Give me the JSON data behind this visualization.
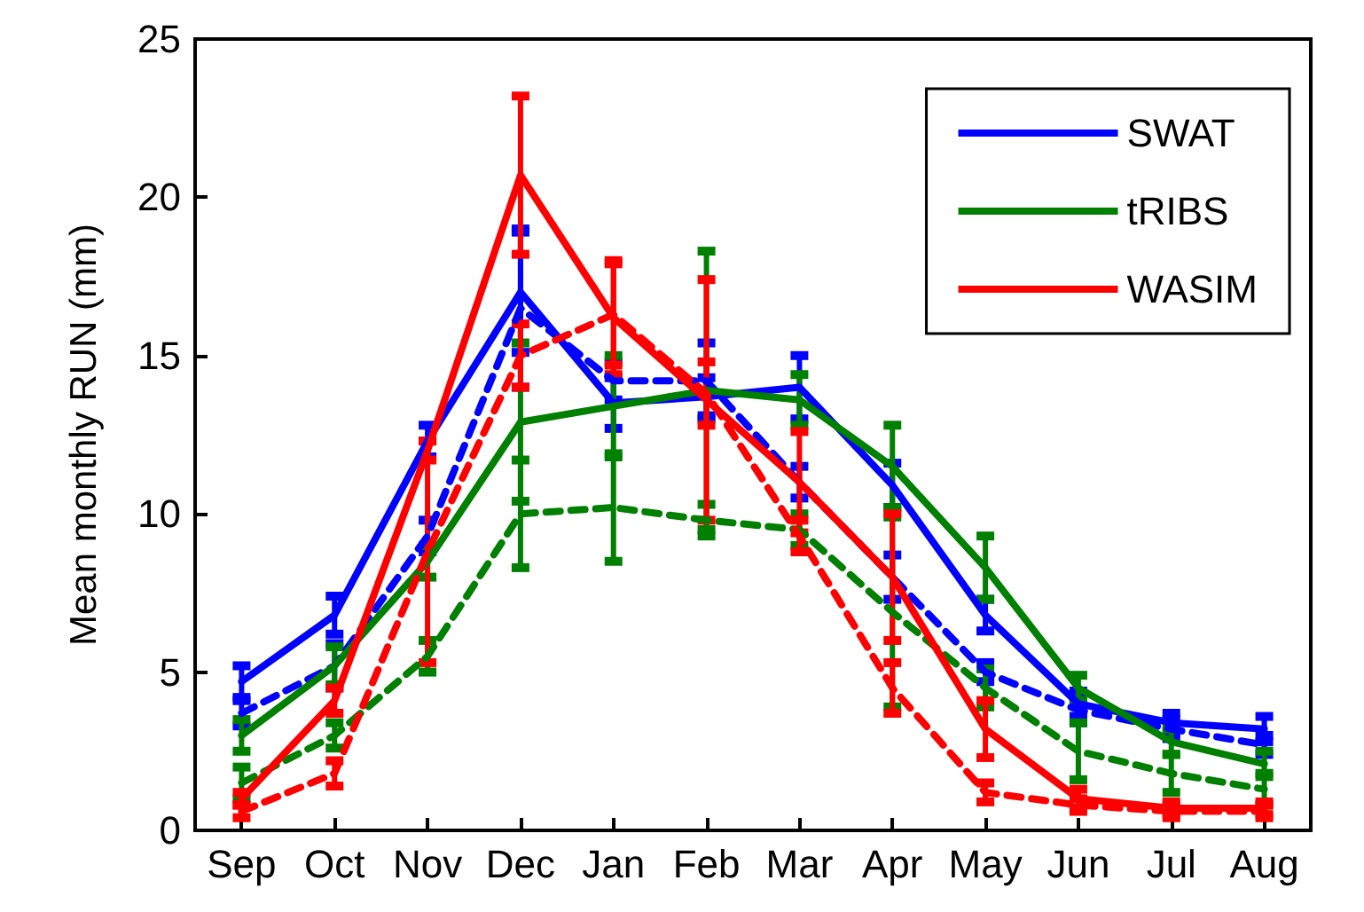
{
  "chart_data": {
    "type": "line",
    "ylabel": "Mean monthly RUN (mm)",
    "categories": [
      "Sep",
      "Oct",
      "Nov",
      "Dec",
      "Jan",
      "Feb",
      "Mar",
      "Apr",
      "May",
      "Jun",
      "Jul",
      "Aug"
    ],
    "ylim": [
      0,
      25
    ],
    "yticks": [
      0,
      5,
      10,
      15,
      20,
      25
    ],
    "grid": false,
    "legend": "top right",
    "marker": "none",
    "series": [
      {
        "name": "SWAT",
        "color": "#0000ff",
        "line_style": "solid",
        "values": [
          4.7,
          6.8,
          12.3,
          17.0,
          13.5,
          13.7,
          14.0,
          10.9,
          6.8,
          4.0,
          3.4,
          3.2
        ],
        "errors": [
          0.5,
          0.6,
          0.5,
          1.9,
          0.8,
          0.6,
          1.0,
          0.7,
          0.5,
          0.4,
          0.3,
          0.4
        ]
      },
      {
        "color": "#0000ff",
        "line_style": "dashed",
        "values": [
          3.7,
          5.2,
          9.3,
          16.5,
          14.2,
          14.2,
          11.0,
          8.0,
          5.0,
          3.8,
          3.2,
          2.7
        ],
        "errors": [
          0.4,
          0.7,
          0.5,
          2.5,
          0.6,
          1.2,
          0.5,
          0.7,
          0.3,
          0.4,
          0.3,
          0.3
        ]
      },
      {
        "name": "tRIBS",
        "color": "#008000",
        "line_style": "solid",
        "values": [
          3.0,
          5.2,
          8.5,
          12.9,
          13.4,
          13.9,
          13.6,
          11.5,
          8.3,
          4.5,
          2.8,
          2.1
        ],
        "errors": [
          0.5,
          0.6,
          0.5,
          2.5,
          1.6,
          4.4,
          0.8,
          1.3,
          1.0,
          0.4,
          0.4,
          0.4
        ]
      },
      {
        "color": "#008000",
        "line_style": "dashed",
        "values": [
          1.5,
          3.0,
          5.5,
          10.0,
          10.2,
          9.8,
          9.5,
          6.9,
          4.5,
          2.5,
          1.8,
          1.3
        ],
        "errors": [
          0.5,
          0.4,
          0.5,
          1.7,
          1.7,
          0.5,
          0.5,
          3.0,
          0.6,
          0.9,
          0.6,
          0.5
        ]
      },
      {
        "name": "WASIM",
        "color": "#ff0000",
        "line_style": "solid",
        "values": [
          1.0,
          4.1,
          12.0,
          20.7,
          16.2,
          13.6,
          11.0,
          8.0,
          3.2,
          1.0,
          0.7,
          0.7
        ],
        "errors": [
          0.2,
          0.4,
          0.3,
          2.5,
          1.8,
          3.8,
          1.6,
          2.0,
          0.9,
          0.3,
          0.2,
          0.2
        ]
      },
      {
        "color": "#ff0000",
        "line_style": "dashed",
        "values": [
          0.6,
          1.8,
          8.8,
          15.0,
          16.3,
          13.8,
          9.3,
          4.5,
          1.2,
          0.8,
          0.6,
          0.6
        ],
        "errors": [
          0.2,
          0.4,
          3.5,
          1.0,
          1.6,
          1.0,
          0.5,
          0.8,
          0.3,
          0.2,
          0.2,
          0.2
        ]
      }
    ]
  }
}
